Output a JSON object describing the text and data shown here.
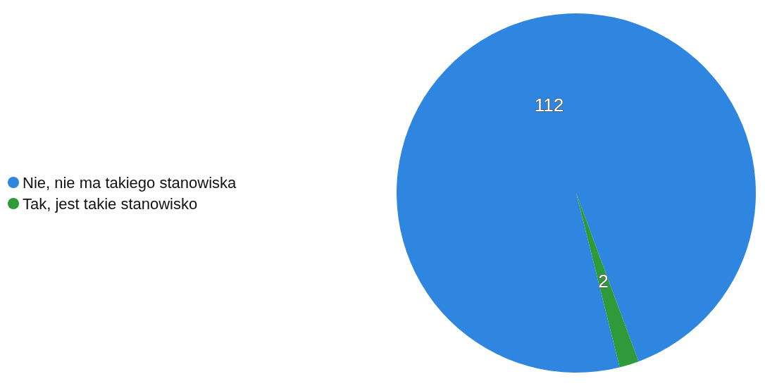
{
  "chart_data": {
    "type": "pie",
    "categories": [
      "Nie, nie ma takiego stanowiska",
      "Tak, jest takie stanowisko"
    ],
    "values": [
      112,
      2
    ],
    "colors": [
      "#2f86e0",
      "#2e9a3a"
    ],
    "data_labels": true,
    "legend": "left"
  }
}
